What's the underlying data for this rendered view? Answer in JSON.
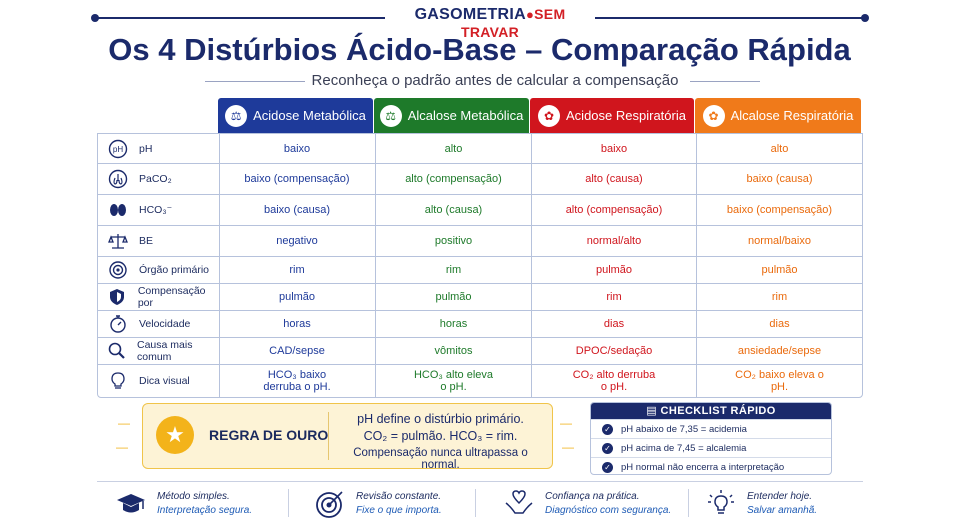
{
  "brand": {
    "part1": "GASOMETRIA",
    "part2": "SEM TRAVAR"
  },
  "title": "Os 4 Distúrbios Ácido-Base – Comparação Rápida",
  "subtitle": "Reconheça o padrão antes de calcular a compensação",
  "colors": {
    "acidose_metabolica": "#1e3a9a",
    "alcalose_metabolica": "#1e7a2a",
    "acidose_respiratoria": "#d0151d",
    "alcalose_respiratoria": "#ea6a0c",
    "navy": "#1b2a6b"
  },
  "columns": [
    {
      "label": "Acidose Metabólica",
      "icon": "flask-icon"
    },
    {
      "label": "Alcalose Metabólica",
      "icon": "flask-icon"
    },
    {
      "label": "Acidose Respiratória",
      "icon": "lungs-icon"
    },
    {
      "label": "Alcalose Respiratória",
      "icon": "lungs-icon"
    }
  ],
  "rows": [
    {
      "label": "pH",
      "icon": "ph-icon",
      "values": [
        "baixo",
        "alto",
        "baixo",
        "alto"
      ]
    },
    {
      "label": "PaCO₂",
      "icon": "lungs-icon",
      "values": [
        "baixo (compensação)",
        "alto (compensação)",
        "alto (causa)",
        "baixo (causa)"
      ]
    },
    {
      "label": "HCO₃⁻",
      "icon": "kidneys-icon",
      "values": [
        "baixo (causa)",
        "alto (causa)",
        "alto (compensação)",
        "baixo (compensação)"
      ]
    },
    {
      "label": "BE",
      "icon": "scale-icon",
      "values": [
        "negativo",
        "positivo",
        "normal/alto",
        "normal/baixo"
      ]
    },
    {
      "label": "Órgão primário",
      "icon": "target-icon",
      "values": [
        "rim",
        "rim",
        "pulmão",
        "pulmão"
      ]
    },
    {
      "label": "Compensação por",
      "icon": "shield-icon",
      "values": [
        "pulmão",
        "pulmão",
        "rim",
        "rim"
      ]
    },
    {
      "label": "Velocidade",
      "icon": "stopwatch-icon",
      "values": [
        "horas",
        "horas",
        "dias",
        "dias"
      ]
    },
    {
      "label": "Causa mais comum",
      "icon": "magnifier-icon",
      "values": [
        "CAD/sepse",
        "vômitos",
        "DPOC/sedação",
        "ansiedade/sepse"
      ]
    },
    {
      "label": "Dica visual",
      "icon": "lightbulb-icon",
      "values": [
        "HCO₃ baixo derruba o pH.",
        "HCO₃ alto eleva o pH.",
        "CO₂ alto derruba o pH.",
        "CO₂ baixo eleva o pH."
      ]
    }
  ],
  "gold_rule": {
    "title": "REGRA DE OURO",
    "lines": [
      "pH define o distúrbio primário.",
      "CO₂ = pulmão. HCO₃ = rim.",
      "Compensação nunca ultrapassa o normal."
    ]
  },
  "checklist": {
    "title": "CHECKLIST RÁPIDO",
    "items": [
      "pH abaixo de 7,35 = acidemia",
      "pH acima de 7,45 = alcalemia",
      "pH normal não encerra a interpretação"
    ]
  },
  "footer": [
    {
      "icon": "graduation-cap-icon",
      "line1": "Método simples.",
      "line2": "Interpretação segura."
    },
    {
      "icon": "target-icon",
      "line1": "Revisão constante.",
      "line2": "Fixe o que importa."
    },
    {
      "icon": "heart-hands-icon",
      "line1": "Confiança na prática.",
      "line2": "Diagnóstico com segurança."
    },
    {
      "icon": "lightbulb-icon",
      "line1": "Entender hoje.",
      "line2": "Salvar amanhã."
    }
  ]
}
